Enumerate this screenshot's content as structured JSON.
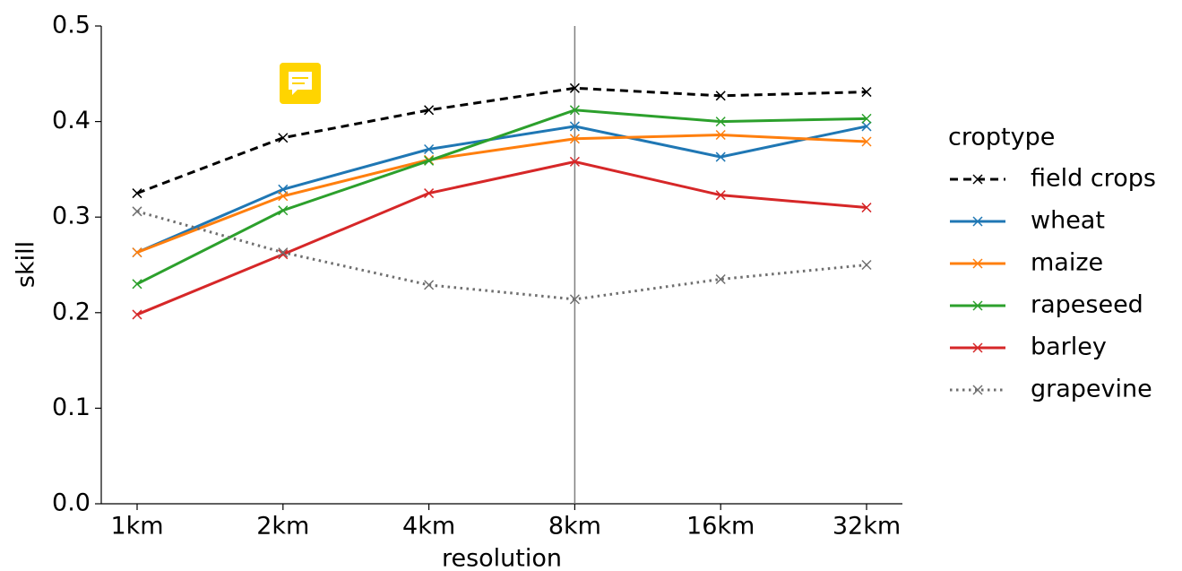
{
  "chart_data": {
    "type": "line",
    "x_label": "resolution",
    "y_label": "skill",
    "categories": [
      "1km",
      "2km",
      "4km",
      "8km",
      "16km",
      "32km"
    ],
    "ylim": [
      0,
      0.5
    ],
    "yticks": [
      0.0,
      0.1,
      0.2,
      0.3,
      0.4,
      0.5
    ],
    "yticks_labels_note": null,
    "vline": "8km",
    "legend_title": "croptype",
    "legend": "outside right",
    "series": [
      {
        "name": "field crops",
        "color": "#000000",
        "dash": "dashed",
        "values": [
          0.325,
          0.383,
          0.412,
          0.435,
          0.427,
          0.431
        ]
      },
      {
        "name": "wheat",
        "color": "#1f77b4",
        "dash": "solid",
        "values": [
          0.263,
          0.329,
          0.371,
          0.395,
          0.363,
          0.395
        ]
      },
      {
        "name": "maize",
        "color": "#ff7f0e",
        "dash": "solid",
        "values": [
          0.263,
          0.322,
          0.36,
          0.382,
          0.386,
          0.379
        ]
      },
      {
        "name": "rapeseed",
        "color": "#2ca02c",
        "dash": "solid",
        "values": [
          0.23,
          0.307,
          0.359,
          0.412,
          0.4,
          0.403
        ]
      },
      {
        "name": "barley",
        "color": "#d62728",
        "dash": "solid",
        "values": [
          0.198,
          0.261,
          0.325,
          0.358,
          0.323,
          0.31
        ]
      },
      {
        "name": "grapevine",
        "color": "#6f6f6f",
        "dash": "dotted",
        "values": [
          0.306,
          0.263,
          0.229,
          0.214,
          0.235,
          0.25
        ]
      }
    ]
  }
}
